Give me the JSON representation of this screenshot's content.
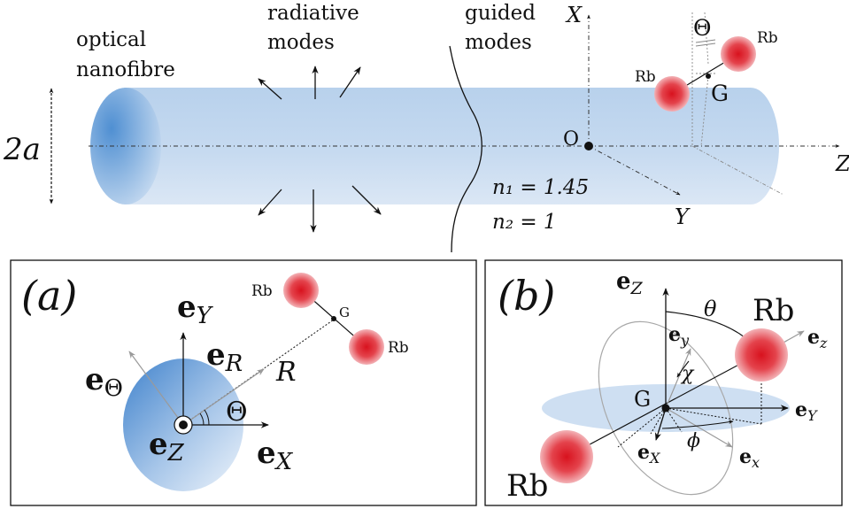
{
  "top": {
    "label_nanofibre_line1": "optical",
    "label_nanofibre_line2": "nanofibre",
    "label_radiative_line1": "radiative",
    "label_radiative_line2": "modes",
    "label_guided_line1": "guided",
    "label_guided_line2": "modes",
    "label_diameter": "2a",
    "label_axis_X": "X",
    "label_axis_Y": "Y",
    "label_axis_Z": "Z",
    "label_origin": "O",
    "label_center": "G",
    "label_angle": "Θ",
    "label_atom1": "Rb",
    "label_atom2": "Rb",
    "label_n1": "n₁ = 1.45",
    "label_n2": "n₂ = 1"
  },
  "panel_a": {
    "tag": "(a)",
    "label_atom1": "Rb",
    "label_atom2": "Rb",
    "label_center": "G",
    "e_Y": "e",
    "e_Y_sub": "Y",
    "e_R": "e",
    "e_R_sub": "R",
    "e_Theta": "e",
    "e_Theta_sub": "Θ",
    "e_Z": "e",
    "e_Z_sub": "Z",
    "e_X": "e",
    "e_X_sub": "X",
    "label_R": "R",
    "label_Theta": "Θ"
  },
  "panel_b": {
    "tag": "(b)",
    "label_atom1": "Rb",
    "label_atom2": "Rb",
    "label_center": "G",
    "e_Z": "e",
    "e_Z_sub": "Z",
    "e_y": "e",
    "e_y_sub": "y",
    "e_z": "e",
    "e_z_sub": "z",
    "e_Y": "e",
    "e_Y_sub": "Y",
    "e_X": "e",
    "e_X_sub": "X",
    "e_x": "e",
    "e_x_sub": "x",
    "label_theta": "θ",
    "label_chi": "χ",
    "label_phi": "ϕ"
  },
  "colors": {
    "fibre_light": "#dce8f5",
    "fibre_mid": "#b9d2ec",
    "fibre_dark": "#6b9fd6",
    "atom": "#e01f2a",
    "grey_arrow": "#9a9a9a"
  }
}
